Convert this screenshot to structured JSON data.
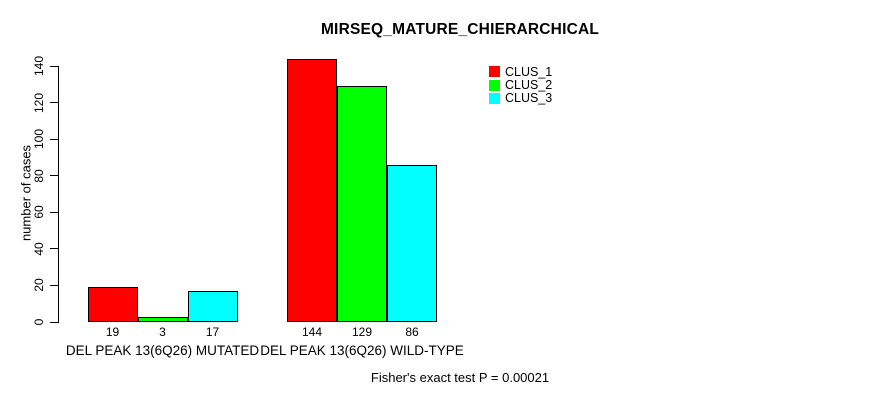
{
  "chart_data": {
    "type": "bar",
    "title": "MIRSEQ_MATURE_CHIERARCHICAL",
    "ylabel": "number of cases",
    "xlabel": "",
    "ylim": [
      0,
      140
    ],
    "yticks": [
      0,
      20,
      40,
      60,
      80,
      100,
      120,
      140
    ],
    "grid": false,
    "legend_position": "top-right",
    "categories": [
      "DEL PEAK 13(6Q26) MUTATED",
      "DEL PEAK 13(6Q26) WILD-TYPE"
    ],
    "series": [
      {
        "name": "CLUS_1",
        "color": "#FF0000",
        "values": [
          19,
          144
        ]
      },
      {
        "name": "CLUS_2",
        "color": "#00FF00",
        "values": [
          3,
          129
        ]
      },
      {
        "name": "CLUS_3",
        "color": "#00FFFF",
        "values": [
          17,
          86
        ]
      }
    ],
    "bar_value_labels": [
      [
        "19",
        "3",
        "17"
      ],
      [
        "144",
        "129",
        "86"
      ]
    ],
    "annotation": "Fisher's exact test P = 0.00021"
  }
}
